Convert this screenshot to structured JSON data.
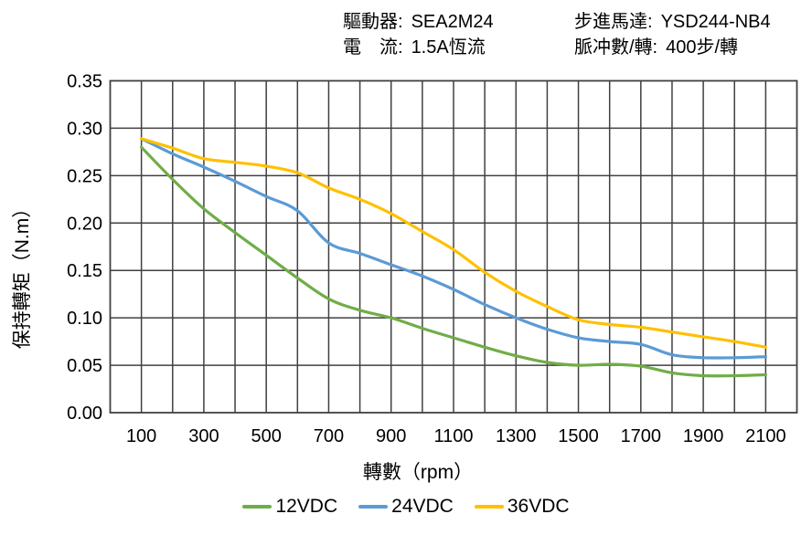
{
  "header": {
    "items": [
      {
        "label": "驅動器:",
        "value": "SEA2M24"
      },
      {
        "label": "電　流:",
        "value": "1.5A恆流"
      },
      {
        "label": "步進馬達:",
        "value": "YSD244-NB4"
      },
      {
        "label": "脈冲數/轉:",
        "value": "400步/轉"
      }
    ]
  },
  "chart_data": {
    "type": "line",
    "title": "",
    "xlabel": "轉數（rpm）",
    "ylabel": "保持轉矩（N.m）",
    "x": [
      100,
      200,
      300,
      400,
      500,
      600,
      700,
      800,
      900,
      1000,
      1100,
      1200,
      1300,
      1400,
      1500,
      1600,
      1700,
      1800,
      1900,
      2000,
      2100
    ],
    "x_tick_labels": [
      "100",
      "300",
      "500",
      "700",
      "900",
      "1100",
      "1300",
      "1500",
      "1700",
      "1900",
      "2100"
    ],
    "y_tick_labels": [
      "0.00",
      "0.05",
      "0.10",
      "0.15",
      "0.20",
      "0.25",
      "0.30",
      "0.35"
    ],
    "xlim": [
      0,
      2200
    ],
    "ylim": [
      0,
      0.35
    ],
    "grid": true,
    "grid_color": "#404040",
    "legend_position": "bottom",
    "series": [
      {
        "name": "12VDC",
        "color": "#70AD47",
        "values": [
          0.28,
          0.246,
          0.215,
          0.19,
          0.166,
          0.142,
          0.12,
          0.108,
          0.1,
          0.089,
          0.079,
          0.069,
          0.06,
          0.053,
          0.05,
          0.051,
          0.049,
          0.042,
          0.039,
          0.039,
          0.04
        ]
      },
      {
        "name": "24VDC",
        "color": "#5B9BD5",
        "values": [
          0.289,
          0.273,
          0.259,
          0.244,
          0.228,
          0.213,
          0.179,
          0.168,
          0.156,
          0.144,
          0.13,
          0.114,
          0.1,
          0.088,
          0.079,
          0.075,
          0.072,
          0.061,
          0.058,
          0.058,
          0.059
        ]
      },
      {
        "name": "36VDC",
        "color": "#FFC000",
        "values": [
          0.289,
          0.279,
          0.268,
          0.264,
          0.26,
          0.253,
          0.237,
          0.225,
          0.21,
          0.191,
          0.172,
          0.148,
          0.128,
          0.112,
          0.098,
          0.093,
          0.09,
          0.085,
          0.08,
          0.075,
          0.069
        ]
      }
    ]
  }
}
